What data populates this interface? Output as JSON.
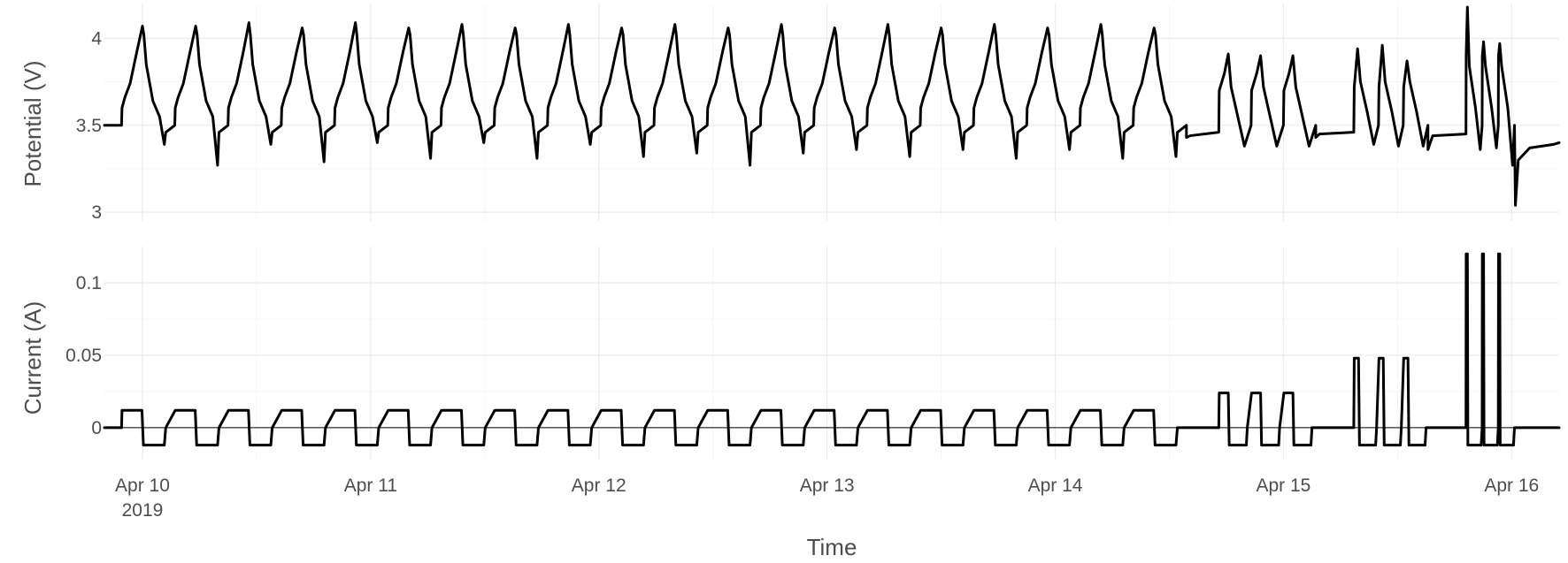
{
  "chart_data": [
    {
      "type": "line",
      "panel": "top",
      "ylabel": "Potential (V)",
      "ylim": [
        2.95,
        4.2
      ],
      "yticks": [
        3,
        3.5,
        4
      ],
      "ytick_labels": [
        "3",
        "3.5",
        "4"
      ],
      "grid": true,
      "color": "#000000",
      "series": [
        {
          "x": [
            "2019-04-09T20:00",
            "2019-04-10T21:00",
            "2019-04-11T21:00",
            "2019-04-12T22:00",
            "2019-04-13T23:00",
            "2019-04-14T20:00",
            "2019-04-15T06:00",
            "2019-04-16T00:00"
          ],
          "values": [
            3.5,
            3.4,
            3.41,
            3.4,
            3.37,
            3.32,
            3.4,
            3.04
          ]
        }
      ]
    },
    {
      "type": "line",
      "panel": "bottom",
      "xlabel": "Time",
      "ylabel": "Current (A)",
      "ylim": [
        -0.022,
        0.125
      ],
      "yticks": [
        0,
        0.05,
        0.1
      ],
      "ytick_labels": [
        "0",
        "0.05",
        "0.1"
      ],
      "grid": true,
      "color": "#000000",
      "x_range": [
        "2019-04-09T20:00",
        "2019-04-16T05:00"
      ],
      "xticks": [
        "2019-04-10",
        "2019-04-11",
        "2019-04-12",
        "2019-04-13",
        "2019-04-14",
        "2019-04-15",
        "2019-04-16"
      ],
      "xtick_labels": [
        "Apr 10",
        "Apr 11",
        "Apr 12",
        "Apr 13",
        "Apr 14",
        "Apr 15",
        "Apr 16"
      ],
      "xtick_sublabel": "2019",
      "series": [
        {
          "x": [
            "2019-04-09T20:00",
            "2019-04-10T00:00",
            "2019-04-14T12:00",
            "2019-04-15T15:00",
            "2019-04-16T00:00"
          ],
          "values": [
            0,
            0.012,
            0.024,
            0.048,
            0.12
          ]
        }
      ]
    }
  ]
}
